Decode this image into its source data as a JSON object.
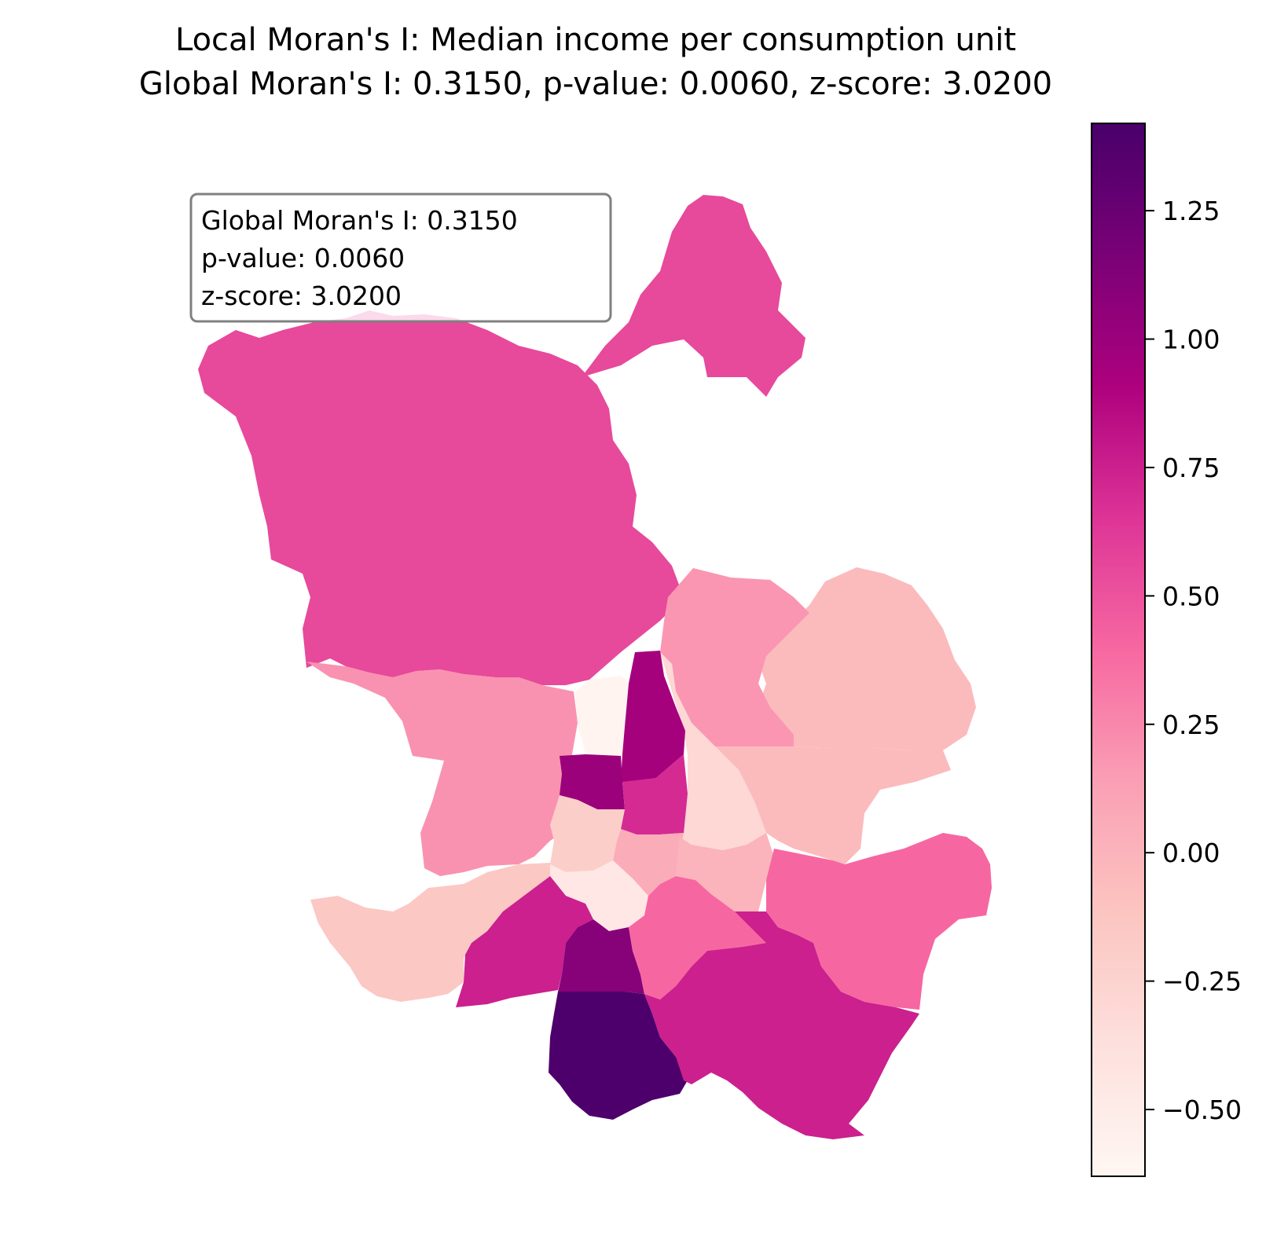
{
  "title": {
    "line1": "Local Moran's I: Median income per consumption unit",
    "line2": "Global Moran's I: 0.3150, p-value: 0.0060, z-score: 3.0200"
  },
  "stats_box": {
    "line1": "Global Moran's I: 0.3150",
    "line2": "p-value: 0.0060",
    "line3": "z-score: 3.0200"
  },
  "colorbar": {
    "colormap": "RdPu",
    "min": -0.63,
    "max": 1.42,
    "ticks": [
      {
        "value": 1.25,
        "label": "1.25"
      },
      {
        "value": 1.0,
        "label": "1.00"
      },
      {
        "value": 0.75,
        "label": "0.75"
      },
      {
        "value": 0.5,
        "label": "0.50"
      },
      {
        "value": 0.25,
        "label": "0.25"
      },
      {
        "value": 0.0,
        "label": "0.00"
      },
      {
        "value": -0.25,
        "label": "−0.25"
      },
      {
        "value": -0.5,
        "label": "−0.50"
      }
    ]
  },
  "regions": [
    {
      "name": "north-large",
      "value": 0.55
    },
    {
      "name": "northeast-lobe",
      "value": 0.55
    },
    {
      "name": "northwest-inner",
      "value": 0.2
    },
    {
      "name": "east-upper",
      "value": -0.05
    },
    {
      "name": "east-upper-inner",
      "value": 0.18
    },
    {
      "name": "east-middle",
      "value": -0.05
    },
    {
      "name": "center-pale-wedge",
      "value": -0.3
    },
    {
      "name": "center-white",
      "value": -0.6
    },
    {
      "name": "center-magenta-strip",
      "value": 0.95
    },
    {
      "name": "center-west-small",
      "value": 1.0
    },
    {
      "name": "center-core",
      "value": 0.7
    },
    {
      "name": "center-south-pale",
      "value": -0.2
    },
    {
      "name": "center-south-light",
      "value": -0.45
    },
    {
      "name": "center-east-light",
      "value": 0.05
    },
    {
      "name": "center-east-2",
      "value": 0.0
    },
    {
      "name": "southwest",
      "value": -0.15
    },
    {
      "name": "south-west-inner",
      "value": 0.75
    },
    {
      "name": "south-center",
      "value": 1.1
    },
    {
      "name": "south-deep",
      "value": 1.4
    },
    {
      "name": "south-east-inner",
      "value": 0.4
    },
    {
      "name": "east-lower",
      "value": 0.4
    },
    {
      "name": "southeast",
      "value": 0.75
    }
  ]
}
